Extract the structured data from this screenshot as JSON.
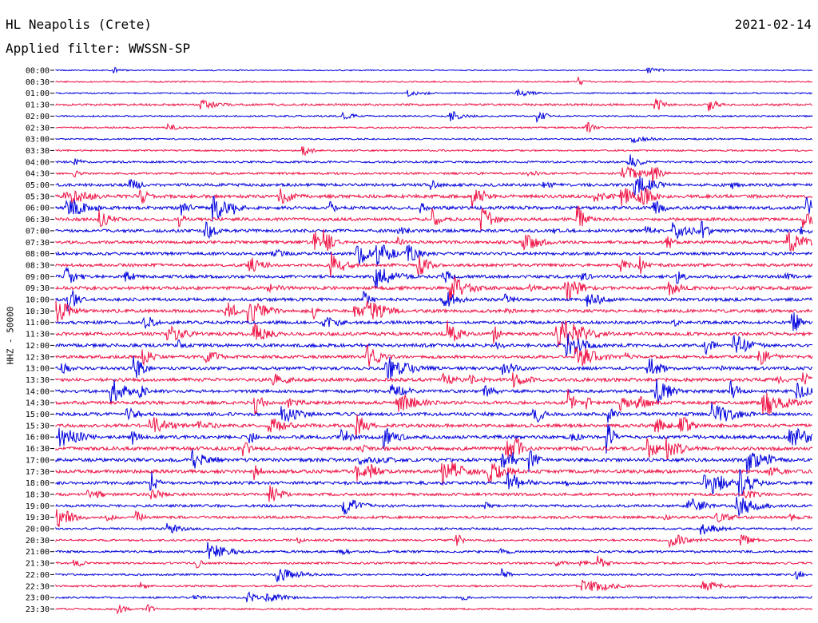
{
  "header": {
    "station": "HL Neapolis (Crete)",
    "date": "2021-02-14",
    "filter": "Applied filter: WWSSN-SP",
    "channel": "HHZ - 50000"
  },
  "colors": {
    "even_trace": "#0000dd",
    "odd_trace": "#ee1144",
    "background": "#ffffff"
  },
  "chart_data": {
    "type": "line",
    "title": "HL Neapolis (Crete)",
    "subtitle": "Applied filter: WWSSN-SP",
    "ylabel": "HHZ - 50000",
    "xlabel": "",
    "date": "2021-02-14",
    "row_interval_minutes": 30,
    "trace_colors": [
      "#0000dd",
      "#ee1144"
    ],
    "grid": false,
    "rows": [
      {
        "label": "00:00",
        "activity": 0.05
      },
      {
        "label": "00:30",
        "activity": 0.1
      },
      {
        "label": "01:00",
        "activity": 0.12
      },
      {
        "label": "01:30",
        "activity": 0.3
      },
      {
        "label": "02:00",
        "activity": 0.12
      },
      {
        "label": "02:30",
        "activity": 0.15
      },
      {
        "label": "03:00",
        "activity": 0.15
      },
      {
        "label": "03:30",
        "activity": 0.2
      },
      {
        "label": "04:00",
        "activity": 0.28
      },
      {
        "label": "04:30",
        "activity": 0.3
      },
      {
        "label": "05:00",
        "activity": 0.55
      },
      {
        "label": "05:30",
        "activity": 0.65
      },
      {
        "label": "06:00",
        "activity": 0.65
      },
      {
        "label": "06:30",
        "activity": 0.6
      },
      {
        "label": "07:00",
        "activity": 0.6
      },
      {
        "label": "07:30",
        "activity": 0.55
      },
      {
        "label": "08:00",
        "activity": 0.55
      },
      {
        "label": "08:30",
        "activity": 0.55
      },
      {
        "label": "09:00",
        "activity": 0.6
      },
      {
        "label": "09:30",
        "activity": 0.65
      },
      {
        "label": "10:00",
        "activity": 0.6
      },
      {
        "label": "10:30",
        "activity": 0.6
      },
      {
        "label": "11:00",
        "activity": 0.6
      },
      {
        "label": "11:30",
        "activity": 0.65
      },
      {
        "label": "12:00",
        "activity": 0.65
      },
      {
        "label": "12:30",
        "activity": 0.6
      },
      {
        "label": "13:00",
        "activity": 0.6
      },
      {
        "label": "13:30",
        "activity": 0.65
      },
      {
        "label": "14:00",
        "activity": 0.6
      },
      {
        "label": "14:30",
        "activity": 0.65
      },
      {
        "label": "15:00",
        "activity": 0.65
      },
      {
        "label": "15:30",
        "activity": 0.65
      },
      {
        "label": "16:00",
        "activity": 0.7
      },
      {
        "label": "16:30",
        "activity": 0.7
      },
      {
        "label": "17:00",
        "activity": 0.7
      },
      {
        "label": "17:30",
        "activity": 0.7
      },
      {
        "label": "18:00",
        "activity": 0.6
      },
      {
        "label": "18:30",
        "activity": 0.5
      },
      {
        "label": "19:00",
        "activity": 0.45
      },
      {
        "label": "19:30",
        "activity": 0.45
      },
      {
        "label": "20:00",
        "activity": 0.3
      },
      {
        "label": "20:30",
        "activity": 0.3
      },
      {
        "label": "21:00",
        "activity": 0.35
      },
      {
        "label": "21:30",
        "activity": 0.3
      },
      {
        "label": "22:00",
        "activity": 0.25
      },
      {
        "label": "22:30",
        "activity": 0.25
      },
      {
        "label": "23:00",
        "activity": 0.25
      },
      {
        "label": "23:30",
        "activity": 0.2
      }
    ]
  }
}
